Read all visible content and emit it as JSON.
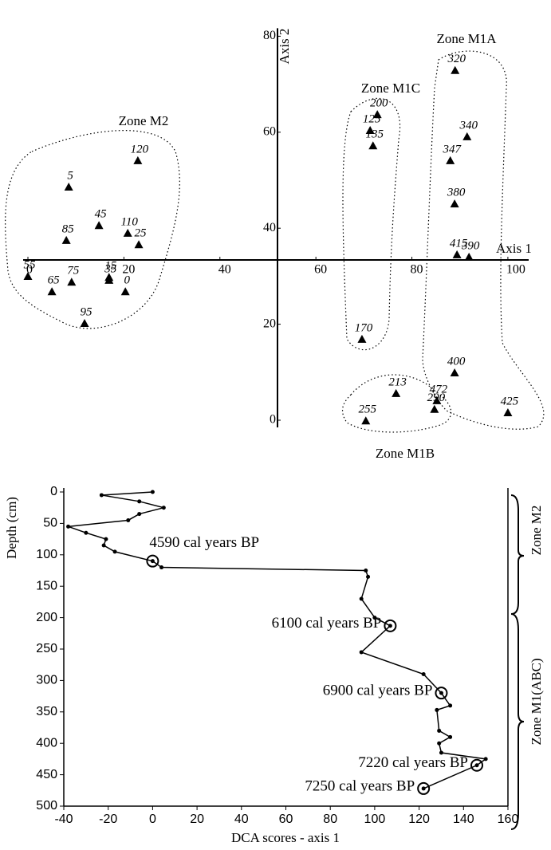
{
  "chart_data": [
    {
      "type": "scatter",
      "xlabel": "Axis 1",
      "ylabel": "Axis 2",
      "xlim": [
        -1,
        104
      ],
      "ylim": [
        -0.5,
        81
      ],
      "xticks": [
        0,
        20,
        40,
        60,
        80,
        100
      ],
      "yticks": [
        0,
        20,
        40,
        60,
        80
      ],
      "zones": [
        "Zone M2",
        "Zone M1C",
        "Zone M1A",
        "Zone M1B"
      ],
      "labels": [
        "320",
        "200",
        "125",
        "135",
        "340",
        "347",
        "380",
        "415",
        "390",
        "170",
        "400",
        "213",
        "472",
        "290",
        "255",
        "425",
        "120",
        "5",
        "45",
        "85",
        "110",
        "25",
        "55",
        "65",
        "75",
        "15",
        "35",
        "0",
        "95"
      ],
      "x": [
        89.0,
        72.8,
        71.3,
        71.9,
        91.5,
        88.0,
        88.9,
        89.4,
        91.9,
        69.6,
        88.9,
        76.7,
        85.2,
        84.7,
        70.4,
        100.0,
        22.9,
        8.5,
        14.8,
        8.0,
        20.8,
        23.1,
        0,
        5.0,
        9.1,
        16.9,
        16.9,
        20.3,
        11.8
      ],
      "values": [
        72.8,
        63.6,
        60.3,
        57.1,
        59.0,
        54.0,
        45.0,
        34.4,
        33.9,
        16.8,
        9.8,
        5.5,
        4.0,
        2.2,
        -0.2,
        1.5,
        54.0,
        48.5,
        40.5,
        37.4,
        38.9,
        36.5,
        29.9,
        26.7,
        28.7,
        29.7,
        29.1,
        26.7,
        20.1
      ],
      "color": "#000000"
    },
    {
      "type": "line",
      "xlabel": "DCA scores - axis 1",
      "ylabel": "Depth (cm)",
      "xlim": [
        -40,
        160
      ],
      "ylim": [
        500,
        0
      ],
      "xticks": [
        -40,
        -20,
        0,
        20,
        40,
        60,
        80,
        100,
        120,
        140,
        160
      ],
      "yticks": [
        0,
        50,
        100,
        150,
        200,
        250,
        300,
        350,
        400,
        450,
        500
      ],
      "x": [
        0,
        -23,
        -6,
        5,
        -6,
        -11,
        -38,
        -30,
        -21,
        -22,
        -17,
        0,
        4,
        96,
        97,
        94,
        100,
        107,
        94,
        122,
        130,
        134,
        128,
        129,
        134,
        129,
        130,
        150,
        146,
        122
      ],
      "values": [
        0,
        5,
        15,
        25,
        35,
        45,
        55,
        65,
        75,
        85,
        95,
        110,
        120,
        125,
        135,
        170,
        200,
        213,
        255,
        290,
        320,
        340,
        347,
        380,
        390,
        400,
        415,
        425,
        435,
        472
      ],
      "color": "#000000",
      "annotations": [
        {
          "text": "4590 cal years BP",
          "x": 0,
          "y": 110
        },
        {
          "text": "6100 cal years BP",
          "x": 107,
          "y": 213
        },
        {
          "text": "6900 cal years BP",
          "x": 130,
          "y": 320
        },
        {
          "text": "7220 cal years BP",
          "x": 146,
          "y": 435
        },
        {
          "text": "7250 cal years BP",
          "x": 122,
          "y": 472
        }
      ],
      "zones": [
        "Zone M2",
        "Zone M1(ABC)"
      ]
    }
  ]
}
